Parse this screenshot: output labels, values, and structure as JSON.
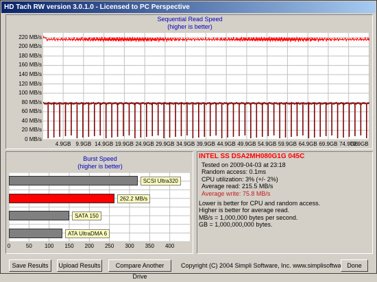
{
  "window": {
    "title": "HD Tach RW version 3.0.1.0 - Licensed to PC Perspective"
  },
  "read_chart": {
    "title": "Sequential Read Speed",
    "subtitle": "(higher is better)",
    "y_tick_labels": [
      "0 MB/s",
      "20 MB/s",
      "40 MB/s",
      "60 MB/s",
      "80 MB/s",
      "100 MB/s",
      "120 MB/s",
      "140 MB/s",
      "160 MB/s",
      "180 MB/s",
      "200 MB/s",
      "220 MB/s"
    ],
    "x_tick_labels": [
      "4.9GB",
      "9.9GB",
      "14.9GB",
      "19.9GB",
      "24.9GB",
      "29.9GB",
      "34.9GB",
      "39.9GB",
      "44.9GB",
      "49.9GB",
      "54.9GB",
      "59.9GB",
      "64.9GB",
      "69.9GB",
      "74.9GB",
      "79.9GB"
    ],
    "colors": {
      "read": "#ff0000",
      "write": "#800000"
    }
  },
  "chart_data": [
    {
      "type": "line",
      "title": "Sequential Read Speed",
      "subtitle": "(higher is better)",
      "ylim": [
        0,
        230
      ],
      "xlim": [
        0,
        80
      ],
      "series": [
        {
          "name": "read",
          "approx_level": 216,
          "range": [
            210,
            222
          ]
        },
        {
          "name": "write",
          "approx_level": 78,
          "dips_to": 3,
          "dip_count": 56
        }
      ]
    },
    {
      "type": "bar",
      "title": "Burst Speed",
      "subtitle": "(higher is better)",
      "orientation": "horizontal",
      "xlim": [
        0,
        450
      ],
      "x_tick_labels": [
        "0",
        "50",
        "100",
        "150",
        "200",
        "250",
        "300",
        "350",
        "400"
      ],
      "categories": [
        "SCSI Ultra320",
        "262.2 MB/s",
        "SATA 150",
        "ATA UltraDMA 6"
      ],
      "values": [
        320,
        262.2,
        150,
        133
      ],
      "colors": [
        "#808080",
        "#ff0000",
        "#808080",
        "#808080"
      ]
    }
  ],
  "info": {
    "drive_name": "INTEL SS DSA2MH080G1G 045C",
    "tested": "Tested on 2009-04-03 at 23:18",
    "random_access": "Random access: 0.1ms",
    "cpu": "CPU utilization: 3% (+/- 2%)",
    "avg_read": "Average read: 215.5 MB/s",
    "avg_write": "Average write: 75.8 MB/s",
    "notes": [
      "Lower is better for CPU and random access.",
      "Higher is better for average read.",
      "MB/s = 1,000,000 bytes per second.",
      "GB = 1,000,000,000 bytes."
    ]
  },
  "buttons": {
    "save": "Save Results",
    "upload": "Upload Results",
    "compare": "Compare Another Drive",
    "done": "Done"
  },
  "copyright": "Copyright (C) 2004 Simpli Software, Inc. www.simplisoftware.com"
}
